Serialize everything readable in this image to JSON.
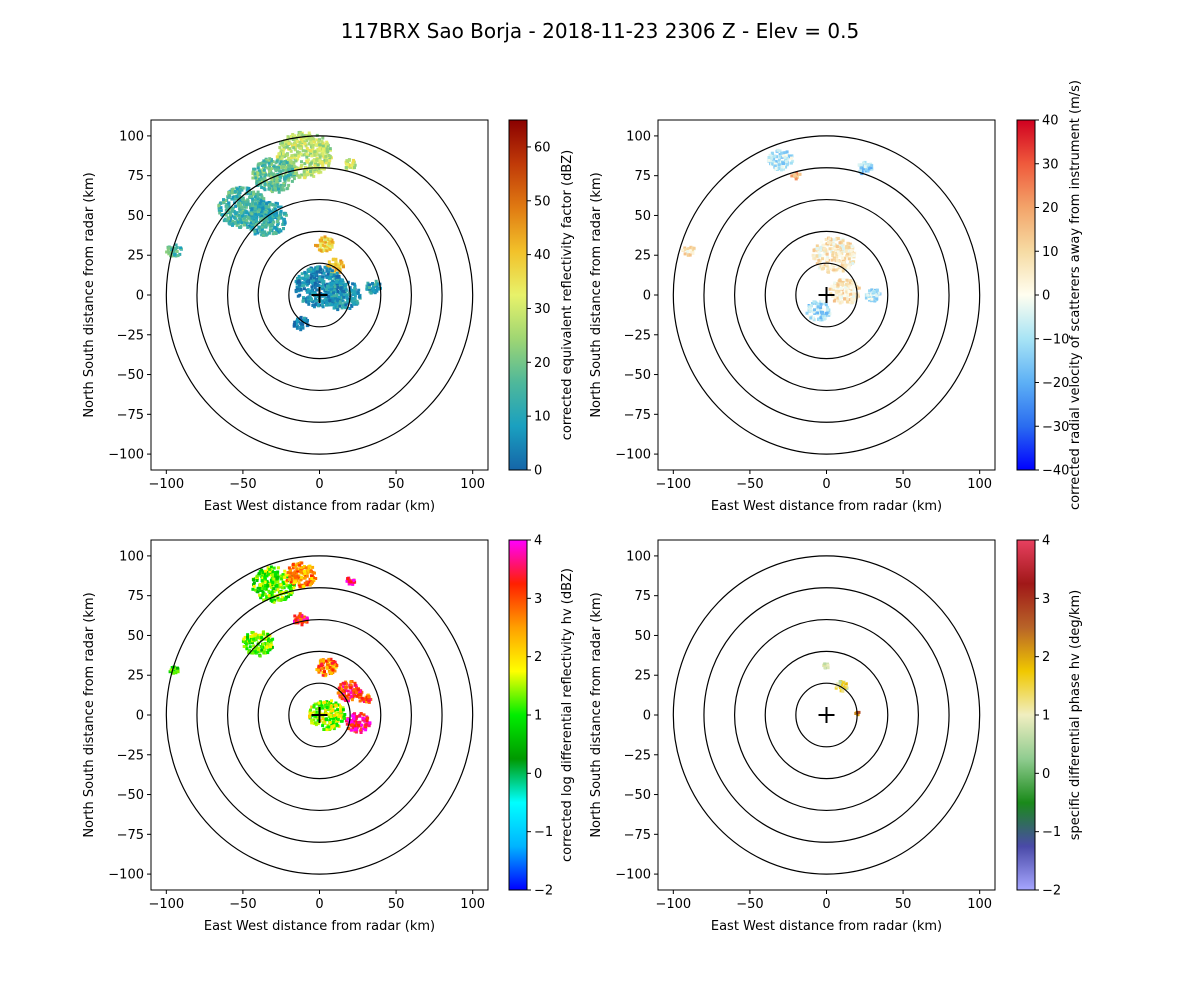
{
  "title": "117BRX Sao Borja - 2018-11-23 2306 Z -  Elev = 0.5",
  "chart_data": [
    {
      "type": "heatmap",
      "xlabel": "East West distance from radar (km)",
      "ylabel": "North South distance from radar (km)",
      "xlim": [
        -110,
        110
      ],
      "ylim": [
        -110,
        110
      ],
      "xticks": [
        -100,
        -50,
        0,
        50,
        100
      ],
      "yticks": [
        -100,
        -75,
        -50,
        -25,
        0,
        25,
        50,
        75,
        100
      ],
      "range_rings_km": [
        20,
        40,
        60,
        80,
        100
      ],
      "colorbar": {
        "label": "corrected equivalent reflectivity factor (dBZ)",
        "vmin": 0,
        "vmax": 65,
        "ticks": [
          0,
          10,
          20,
          30,
          40,
          50,
          60
        ],
        "stops": [
          "#1565a8",
          "#1aa0c0",
          "#4fb89a",
          "#9fd673",
          "#e8f26a",
          "#f2c12a",
          "#e07a12",
          "#c03a08",
          "#8a0000"
        ]
      },
      "echoes": [
        {
          "x": -10,
          "y": 88,
          "r": 18,
          "v": 28
        },
        {
          "x": -30,
          "y": 75,
          "r": 14,
          "v": 18
        },
        {
          "x": -50,
          "y": 55,
          "r": 16,
          "v": 14
        },
        {
          "x": -35,
          "y": 48,
          "r": 14,
          "v": 12
        },
        {
          "x": 3,
          "y": 32,
          "r": 6,
          "v": 38
        },
        {
          "x": 10,
          "y": 18,
          "r": 6,
          "v": 40
        },
        {
          "x": 0,
          "y": 5,
          "r": 16,
          "v": 6
        },
        {
          "x": 15,
          "y": 0,
          "r": 12,
          "v": 8
        },
        {
          "x": -95,
          "y": 28,
          "r": 5,
          "v": 16
        },
        {
          "x": 20,
          "y": 82,
          "r": 4,
          "v": 30
        },
        {
          "x": 35,
          "y": 5,
          "r": 5,
          "v": 10
        },
        {
          "x": -12,
          "y": -18,
          "r": 5,
          "v": 4
        }
      ]
    },
    {
      "type": "heatmap",
      "xlabel": "East West distance from radar (km)",
      "ylabel": "North South distance from radar (km)",
      "xlim": [
        -110,
        110
      ],
      "ylim": [
        -110,
        110
      ],
      "xticks": [
        -100,
        -50,
        0,
        50,
        100
      ],
      "yticks": [
        -100,
        -75,
        -50,
        -25,
        0,
        25,
        50,
        75,
        100
      ],
      "range_rings_km": [
        20,
        40,
        60,
        80,
        100
      ],
      "colorbar": {
        "label": "corrected radial velocity of scatterers away from instrument (m/s)",
        "vmin": -40,
        "vmax": 40,
        "ticks": [
          -40,
          -30,
          -20,
          -10,
          0,
          10,
          20,
          30,
          40
        ],
        "stops": [
          "#0000ff",
          "#2a6cf0",
          "#5db0f5",
          "#a8e4f5",
          "#fffef0",
          "#f6dba3",
          "#f3a46a",
          "#ef5a3c",
          "#d00020"
        ]
      },
      "echoes": [
        {
          "x": 5,
          "y": 25,
          "r": 14,
          "v": 5
        },
        {
          "x": 12,
          "y": 2,
          "r": 10,
          "v": 6
        },
        {
          "x": -5,
          "y": -10,
          "r": 8,
          "v": -10
        },
        {
          "x": -90,
          "y": 28,
          "r": 4,
          "v": 6
        },
        {
          "x": -30,
          "y": 85,
          "r": 8,
          "v": -8
        },
        {
          "x": 25,
          "y": 80,
          "r": 5,
          "v": -12
        },
        {
          "x": -20,
          "y": 75,
          "r": 3,
          "v": 18
        },
        {
          "x": 30,
          "y": 0,
          "r": 5,
          "v": -8
        }
      ]
    },
    {
      "type": "heatmap",
      "xlabel": "East West distance from radar (km)",
      "ylabel": "North South distance from radar (km)",
      "xlim": [
        -110,
        110
      ],
      "ylim": [
        -110,
        110
      ],
      "xticks": [
        -100,
        -50,
        0,
        50,
        100
      ],
      "yticks": [
        -100,
        -75,
        -50,
        -25,
        0,
        25,
        50,
        75,
        100
      ],
      "range_rings_km": [
        20,
        40,
        60,
        80,
        100
      ],
      "colorbar": {
        "label": "corrected log differential reflectivity hv (dBZ)",
        "vmin": -2,
        "vmax": 4,
        "ticks": [
          -2,
          -1,
          0,
          1,
          2,
          3,
          4
        ],
        "stops": [
          "#0000ff",
          "#00b4ff",
          "#00ffff",
          "#009900",
          "#00ee00",
          "#ffff00",
          "#ffa000",
          "#ff2000",
          "#ff00ff"
        ]
      },
      "echoes": [
        {
          "x": -30,
          "y": 82,
          "r": 14,
          "v": 1.2
        },
        {
          "x": -12,
          "y": 88,
          "r": 10,
          "v": 2.6
        },
        {
          "x": 20,
          "y": 84,
          "r": 3,
          "v": 3.8
        },
        {
          "x": 5,
          "y": 30,
          "r": 7,
          "v": 2.8
        },
        {
          "x": 20,
          "y": 15,
          "r": 8,
          "v": 3.2
        },
        {
          "x": 25,
          "y": -5,
          "r": 8,
          "v": 3.5
        },
        {
          "x": 5,
          "y": 0,
          "r": 12,
          "v": 1.5
        },
        {
          "x": 30,
          "y": 10,
          "r": 4,
          "v": 3.0
        },
        {
          "x": -95,
          "y": 28,
          "r": 3,
          "v": 1.0
        },
        {
          "x": -40,
          "y": 45,
          "r": 10,
          "v": 1.3
        },
        {
          "x": -12,
          "y": 60,
          "r": 5,
          "v": 3.3
        }
      ]
    },
    {
      "type": "heatmap",
      "xlabel": "East West distance from radar (km)",
      "ylabel": "North South distance from radar (km)",
      "xlim": [
        -110,
        110
      ],
      "ylim": [
        -110,
        110
      ],
      "xticks": [
        -100,
        -50,
        0,
        50,
        100
      ],
      "yticks": [
        -100,
        -75,
        -50,
        -25,
        0,
        25,
        50,
        75,
        100
      ],
      "range_rings_km": [
        20,
        40,
        60,
        80,
        100
      ],
      "colorbar": {
        "label": "specific differential phase hv (deg/km)",
        "vmin": -2,
        "vmax": 4,
        "ticks": [
          -2,
          -1,
          0,
          1,
          2,
          3,
          4
        ],
        "stops": [
          "#a6a6ff",
          "#4a4aa8",
          "#1a8a1a",
          "#90cc90",
          "#f0eec0",
          "#f0c800",
          "#b86428",
          "#a01818",
          "#e84060"
        ]
      },
      "echoes": [
        {
          "x": 10,
          "y": 18,
          "r": 4,
          "v": 1.2
        },
        {
          "x": 0,
          "y": 31,
          "r": 2,
          "v": 0.5
        },
        {
          "x": 20,
          "y": 1,
          "r": 1.5,
          "v": 2.2
        }
      ]
    }
  ]
}
